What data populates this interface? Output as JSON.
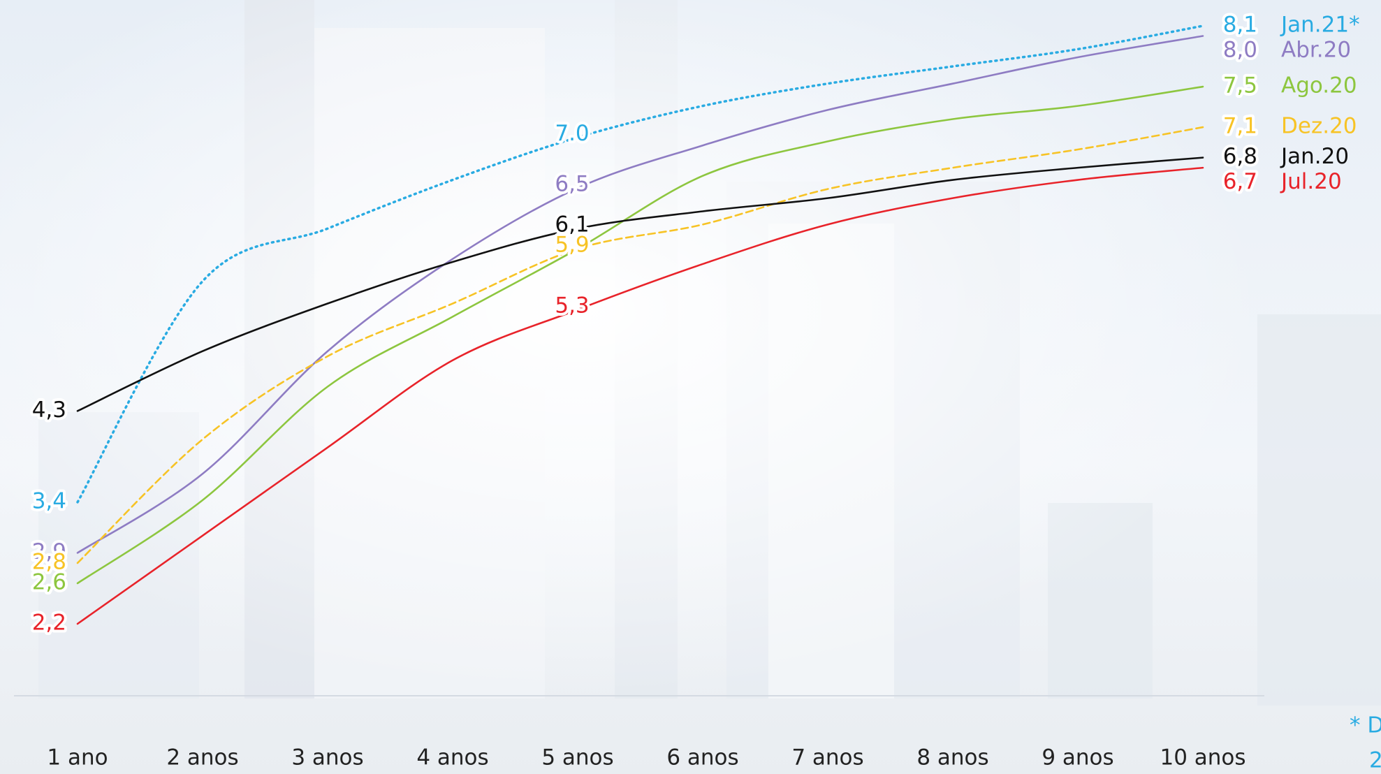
{
  "chart_data": {
    "type": "line",
    "categories": [
      "1 ano",
      "2 anos",
      "3 anos",
      "4 anos",
      "5 anos",
      "6 anos",
      "7 anos",
      "8 anos",
      "9 anos",
      "10 anos"
    ],
    "series": [
      {
        "name": "Jan.21*",
        "color": "#29abe2",
        "style": "dotted",
        "values": [
          3.4,
          5.58,
          6.1,
          6.58,
          7.0,
          7.31,
          7.53,
          7.7,
          7.87,
          8.1
        ],
        "value_labels": [
          "3,4",
          null,
          null,
          null,
          "7.0",
          null,
          null,
          null,
          null,
          "8,1"
        ]
      },
      {
        "name": "Abr.20",
        "color": "#8e7cc3",
        "style": "solid",
        "values": [
          2.9,
          3.68,
          4.89,
          5.8,
          6.5,
          6.92,
          7.27,
          7.53,
          7.79,
          8.0
        ],
        "value_labels": [
          "2,9",
          null,
          null,
          null,
          "6,5",
          null,
          null,
          null,
          null,
          "8,0"
        ]
      },
      {
        "name": "Ago.20",
        "color": "#8dc63f",
        "style": "solid",
        "values": [
          2.6,
          3.42,
          4.54,
          5.23,
          5.9,
          6.62,
          6.96,
          7.18,
          7.31,
          7.5
        ],
        "value_labels": [
          "2,6",
          null,
          null,
          null,
          null,
          null,
          null,
          null,
          null,
          "7,5"
        ]
      },
      {
        "name": "Dez.20",
        "color": "#f7c325",
        "style": "dashed",
        "values": [
          2.8,
          4.02,
          4.84,
          5.36,
          5.9,
          6.14,
          6.49,
          6.7,
          6.88,
          7.1
        ],
        "value_labels": [
          "2,8",
          null,
          null,
          null,
          "5,9",
          null,
          null,
          null,
          null,
          "7,1"
        ]
      },
      {
        "name": "Jan.20",
        "color": "#111111",
        "style": "solid",
        "values": [
          4.3,
          4.89,
          5.36,
          5.77,
          6.1,
          6.27,
          6.4,
          6.58,
          6.7,
          6.8
        ],
        "value_labels": [
          "4,3",
          null,
          null,
          null,
          "6,1",
          null,
          null,
          null,
          null,
          "6,8"
        ]
      },
      {
        "name": "Jul.20",
        "color": "#e8232a",
        "style": "solid",
        "values": [
          2.2,
          3.07,
          3.94,
          4.8,
          5.3,
          5.75,
          6.14,
          6.4,
          6.58,
          6.7
        ],
        "value_labels": [
          "2,2",
          null,
          null,
          null,
          "5,3",
          null,
          null,
          null,
          null,
          "6,7"
        ]
      }
    ],
    "footnote": [
      "* D",
      "2"
    ]
  }
}
